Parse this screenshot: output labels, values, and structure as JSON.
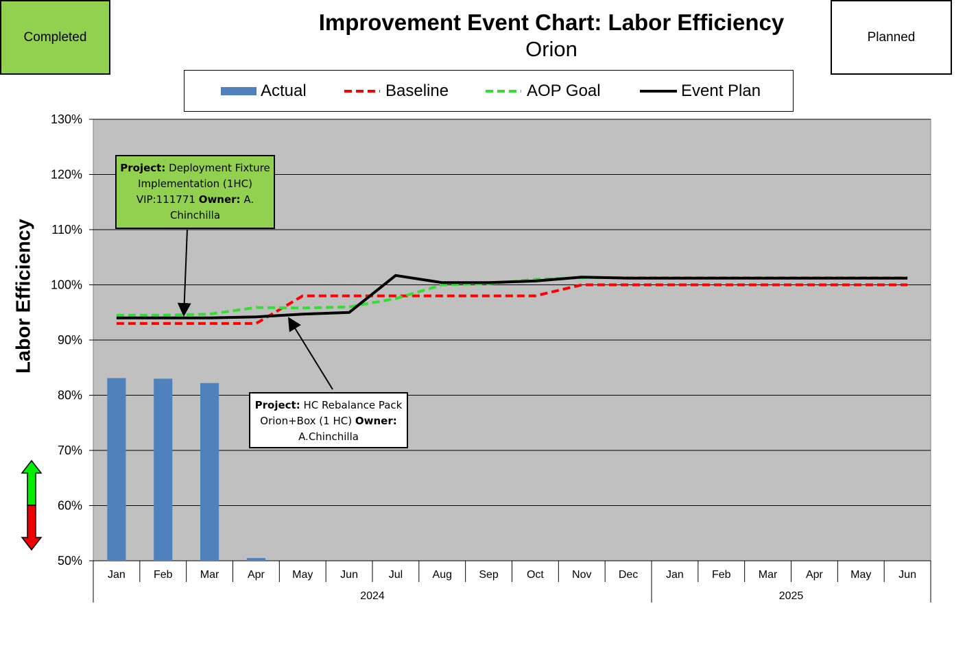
{
  "status": {
    "completed": "Completed",
    "planned": "Planned"
  },
  "chart_data": {
    "type": "bar+line",
    "title": "Improvement Event Chart: Labor Efficiency",
    "subtitle": "Orion",
    "ylabel": "Labor Efficiency",
    "ylim": [
      0.5,
      1.3
    ],
    "yticks": [
      "50%",
      "60%",
      "70%",
      "80%",
      "90%",
      "100%",
      "110%",
      "120%",
      "130%"
    ],
    "categories": [
      "Jan",
      "Feb",
      "Mar",
      "Apr",
      "May",
      "Jun",
      "Jul",
      "Aug",
      "Sep",
      "Oct",
      "Nov",
      "Dec",
      "Jan",
      "Feb",
      "Mar",
      "Apr",
      "May",
      "Jun"
    ],
    "year_groups": [
      {
        "label": "2024",
        "count": 12
      },
      {
        "label": "2025",
        "count": 6
      }
    ],
    "grid": true,
    "legend_position": "top",
    "series": [
      {
        "name": "Actual",
        "kind": "bar",
        "color": "#4f81bd",
        "values": [
          0.831,
          0.83,
          0.822,
          0.505,
          null,
          null,
          null,
          null,
          null,
          null,
          null,
          null,
          null,
          null,
          null,
          null,
          null,
          null
        ]
      },
      {
        "name": "Baseline",
        "kind": "line",
        "style": "dashed",
        "color": "#ff0000",
        "values": [
          0.93,
          0.93,
          0.93,
          0.93,
          0.98,
          0.98,
          0.98,
          0.98,
          0.98,
          0.98,
          1.0,
          1.0,
          1.0,
          1.0,
          1.0,
          1.0,
          1.0,
          1.0
        ]
      },
      {
        "name": "AOP Goal",
        "kind": "line",
        "style": "dashed",
        "color": "#33dd33",
        "values": [
          0.945,
          0.945,
          0.947,
          0.959,
          0.958,
          0.96,
          0.975,
          1.0,
          1.002,
          1.01,
          1.013,
          1.013,
          1.013,
          1.013,
          1.013,
          1.013,
          1.013,
          1.013
        ]
      },
      {
        "name": "Event Plan",
        "kind": "line",
        "style": "solid",
        "color": "#000000",
        "values": [
          0.94,
          0.94,
          0.94,
          0.942,
          0.947,
          0.95,
          1.017,
          1.004,
          1.004,
          1.007,
          1.014,
          1.012,
          1.012,
          1.012,
          1.012,
          1.012,
          1.012,
          1.012
        ]
      }
    ],
    "annotations": [
      {
        "label": "Project:",
        "text": "Deployment Fixture Implementation (1HC) VIP:111771",
        "owner_label": "Owner:",
        "owner": "A. Chinchilla",
        "points_to": "Feb"
      },
      {
        "label": "Project:",
        "text": "HC Rebalance Pack Orion+Box (1 HC)",
        "owner_label": "Owner:",
        "owner": "A.Chinchilla",
        "points_to": "Apr-May"
      }
    ]
  }
}
